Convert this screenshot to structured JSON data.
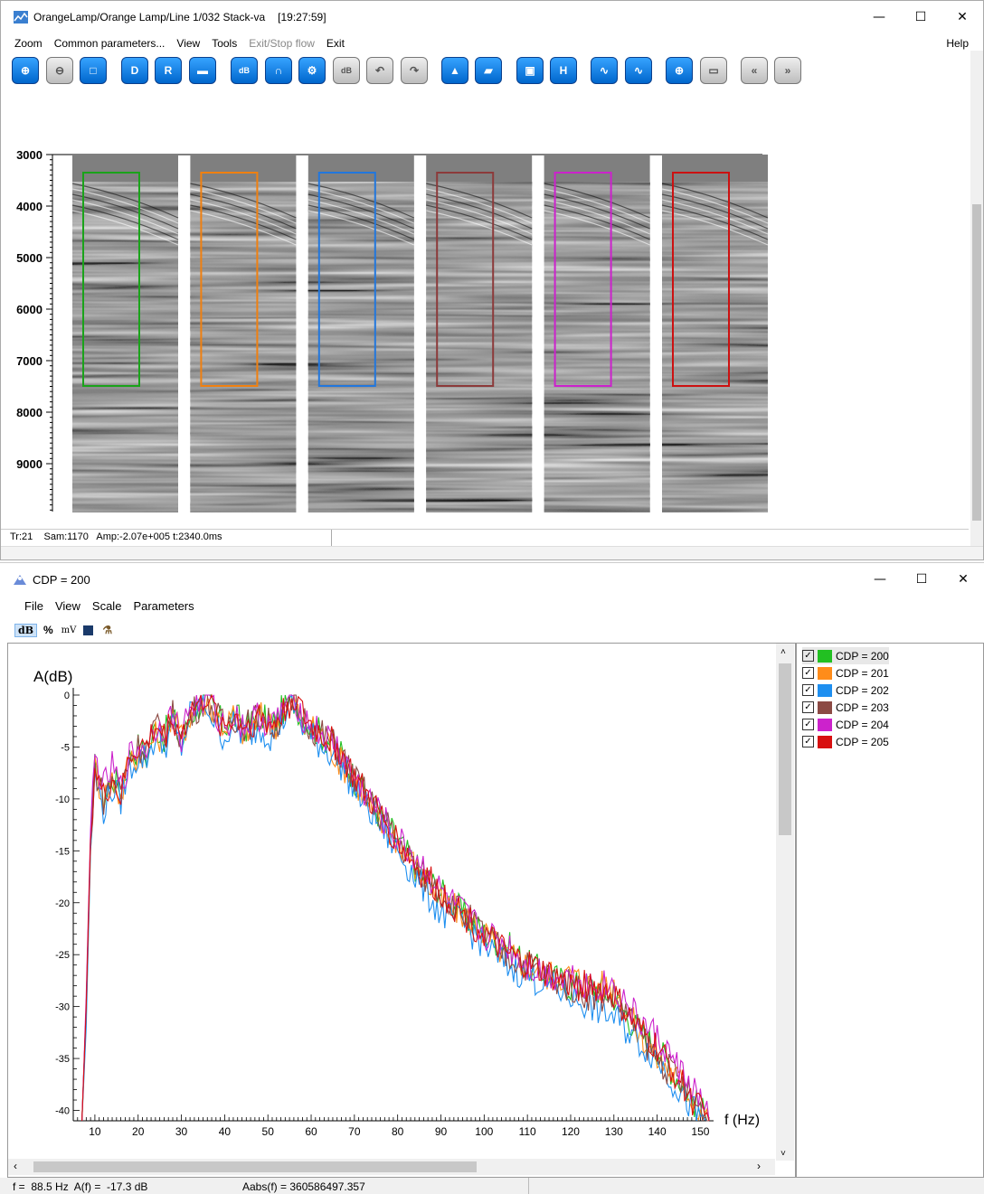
{
  "seis_window": {
    "title": "OrangeLamp/Orange Lamp/Line 1/032 Stack-va",
    "time": "[19:27:59]",
    "menu": [
      "Zoom",
      "Common parameters...",
      "View",
      "Tools",
      "Exit/Stop flow",
      "Exit"
    ],
    "help": "Help",
    "toolbar_icons": [
      "zoom-in-icon",
      "zoom-out-icon",
      "zoom-rect-icon",
      "d-mode-icon",
      "r-mode-icon",
      "gain-icon",
      "db-up-icon",
      "curve-icon",
      "gear-up-icon",
      "db-down-icon",
      "undo-curve-icon",
      "redo-curve-icon",
      "triangle-icon",
      "parallelogram-icon",
      "save-icon",
      "h-icon",
      "wave-icon",
      "wave-plus-icon",
      "target-icon",
      "link-icon",
      "prev-icon",
      "next-icon"
    ],
    "y_ticks": [
      "3000",
      "4000",
      "5000",
      "6000",
      "7000",
      "8000",
      "9000"
    ],
    "panel_box_colors": [
      "#1aa31a",
      "#f08010",
      "#2277dd",
      "#8c3a3a",
      "#cc22cc",
      "#cc1111"
    ],
    "status": "Tr:21    Sam:1170   Amp:-2.07e+005 t:2340.0ms"
  },
  "spectrum_window": {
    "title": "CDP = 200",
    "menu": [
      "File",
      "View",
      "Scale",
      "Parameters"
    ],
    "toolbar": {
      "db": "dB",
      "percent": "%",
      "mv": "mV"
    },
    "legend": [
      {
        "label": "CDP = 200",
        "color": "#22c022"
      },
      {
        "label": "CDP = 201",
        "color": "#ff8c1a"
      },
      {
        "label": "CDP = 202",
        "color": "#1e8ff0"
      },
      {
        "label": "CDP = 203",
        "color": "#8c4a44"
      },
      {
        "label": "CDP = 204",
        "color": "#cc22cc"
      },
      {
        "label": "CDP = 205",
        "color": "#d81010"
      }
    ],
    "status_f": "f =  88.5 Hz  A(f) =  -17.3 dB",
    "status_abs": "Aabs(f) = 360586497.357"
  },
  "chart_data": {
    "type": "line",
    "ylabel": "A(dB)",
    "xlabel": "f (Hz)",
    "xlim": [
      5,
      152
    ],
    "ylim": [
      -41,
      0
    ],
    "x_ticks": [
      10,
      20,
      30,
      40,
      50,
      60,
      70,
      80,
      90,
      100,
      110,
      120,
      130,
      140,
      150
    ],
    "y_ticks": [
      0,
      -5,
      -10,
      -15,
      -20,
      -25,
      -30,
      -35,
      -40
    ],
    "x": [
      7,
      8,
      9,
      10,
      12,
      14,
      16,
      18,
      20,
      22,
      24,
      26,
      28,
      30,
      32,
      34,
      36,
      38,
      40,
      42,
      45,
      48,
      51,
      54,
      56,
      58,
      60,
      63,
      66,
      70,
      75,
      80,
      85,
      90,
      95,
      100,
      105,
      110,
      115,
      120,
      125,
      130,
      135,
      140,
      145,
      150,
      152
    ],
    "series": [
      {
        "name": "CDP = 200",
        "values": [
          -41,
          -30,
          -14,
          -7,
          -10,
          -8,
          -9,
          -6,
          -5,
          -6,
          -3,
          -4,
          -2,
          -5,
          -2,
          -1,
          0,
          -2,
          -3,
          -2,
          -3,
          -2,
          -3,
          -1,
          -0.5,
          -2,
          -3,
          -4,
          -5,
          -8,
          -11,
          -14,
          -17,
          -19,
          -21,
          -23,
          -24,
          -26,
          -27,
          -28,
          -28,
          -29,
          -32,
          -34,
          -37,
          -40,
          -41
        ]
      },
      {
        "name": "CDP = 201",
        "values": [
          -41,
          -31,
          -15,
          -7,
          -10,
          -8,
          -10,
          -6,
          -6,
          -5,
          -4,
          -4,
          -2,
          -4,
          -2,
          -1,
          -0.5,
          -2,
          -3,
          -2,
          -4,
          -2,
          -3,
          -2,
          -0.5,
          -3,
          -3,
          -4,
          -6,
          -8,
          -12,
          -14,
          -17,
          -20,
          -21,
          -23,
          -25,
          -26,
          -27,
          -27,
          -28,
          -28,
          -32,
          -35,
          -37,
          -40,
          -41
        ]
      },
      {
        "name": "CDP = 202",
        "values": [
          -41,
          -32,
          -15,
          -8,
          -11,
          -9,
          -10,
          -7,
          -6,
          -6,
          -4,
          -5,
          -3,
          -5,
          -2,
          -1,
          -1,
          -3,
          -4,
          -3,
          -4,
          -3,
          -4,
          -2,
          -1,
          -3,
          -4,
          -5,
          -6,
          -9,
          -12,
          -15,
          -18,
          -21,
          -22,
          -24,
          -26,
          -27,
          -28,
          -29,
          -30,
          -31,
          -33,
          -35,
          -38,
          -41,
          -41
        ]
      },
      {
        "name": "CDP = 203",
        "values": [
          -41,
          -30,
          -14,
          -7,
          -10,
          -8,
          -9,
          -6,
          -5,
          -5,
          -3,
          -4,
          -2,
          -4,
          -2,
          -1,
          0,
          -2,
          -3,
          -2,
          -3,
          -2,
          -3,
          -2,
          -1,
          -2,
          -3,
          -4,
          -5,
          -8,
          -11,
          -14,
          -17,
          -19,
          -21,
          -23,
          -25,
          -26,
          -27,
          -28,
          -29,
          -29,
          -32,
          -35,
          -37,
          -40,
          -41
        ]
      },
      {
        "name": "CDP = 204",
        "values": [
          -41,
          -29,
          -13,
          -6,
          -9,
          -7,
          -9,
          -6,
          -5,
          -5,
          -3,
          -3,
          -2,
          -4,
          -1,
          -1,
          0,
          -2,
          -3,
          -2,
          -3,
          -2,
          -3,
          -1,
          0,
          -2,
          -3,
          -4,
          -5,
          -8,
          -11,
          -14,
          -16,
          -19,
          -21,
          -23,
          -24,
          -26,
          -27,
          -27,
          -28,
          -28,
          -31,
          -33,
          -36,
          -39,
          -41
        ]
      },
      {
        "name": "CDP = 205",
        "values": [
          -41,
          -30,
          -14,
          -7,
          -10,
          -8,
          -10,
          -6,
          -5,
          -5,
          -3,
          -4,
          -2,
          -4,
          -1.5,
          -1,
          0,
          -2,
          -3,
          -2,
          -3,
          -2,
          -3,
          -1.5,
          0,
          -2,
          -3,
          -4,
          -5,
          -8,
          -11,
          -14,
          -17,
          -19,
          -21,
          -23,
          -25,
          -26,
          -27,
          -28,
          -28,
          -29,
          -32,
          -34,
          -37,
          -40,
          -41
        ]
      }
    ]
  }
}
